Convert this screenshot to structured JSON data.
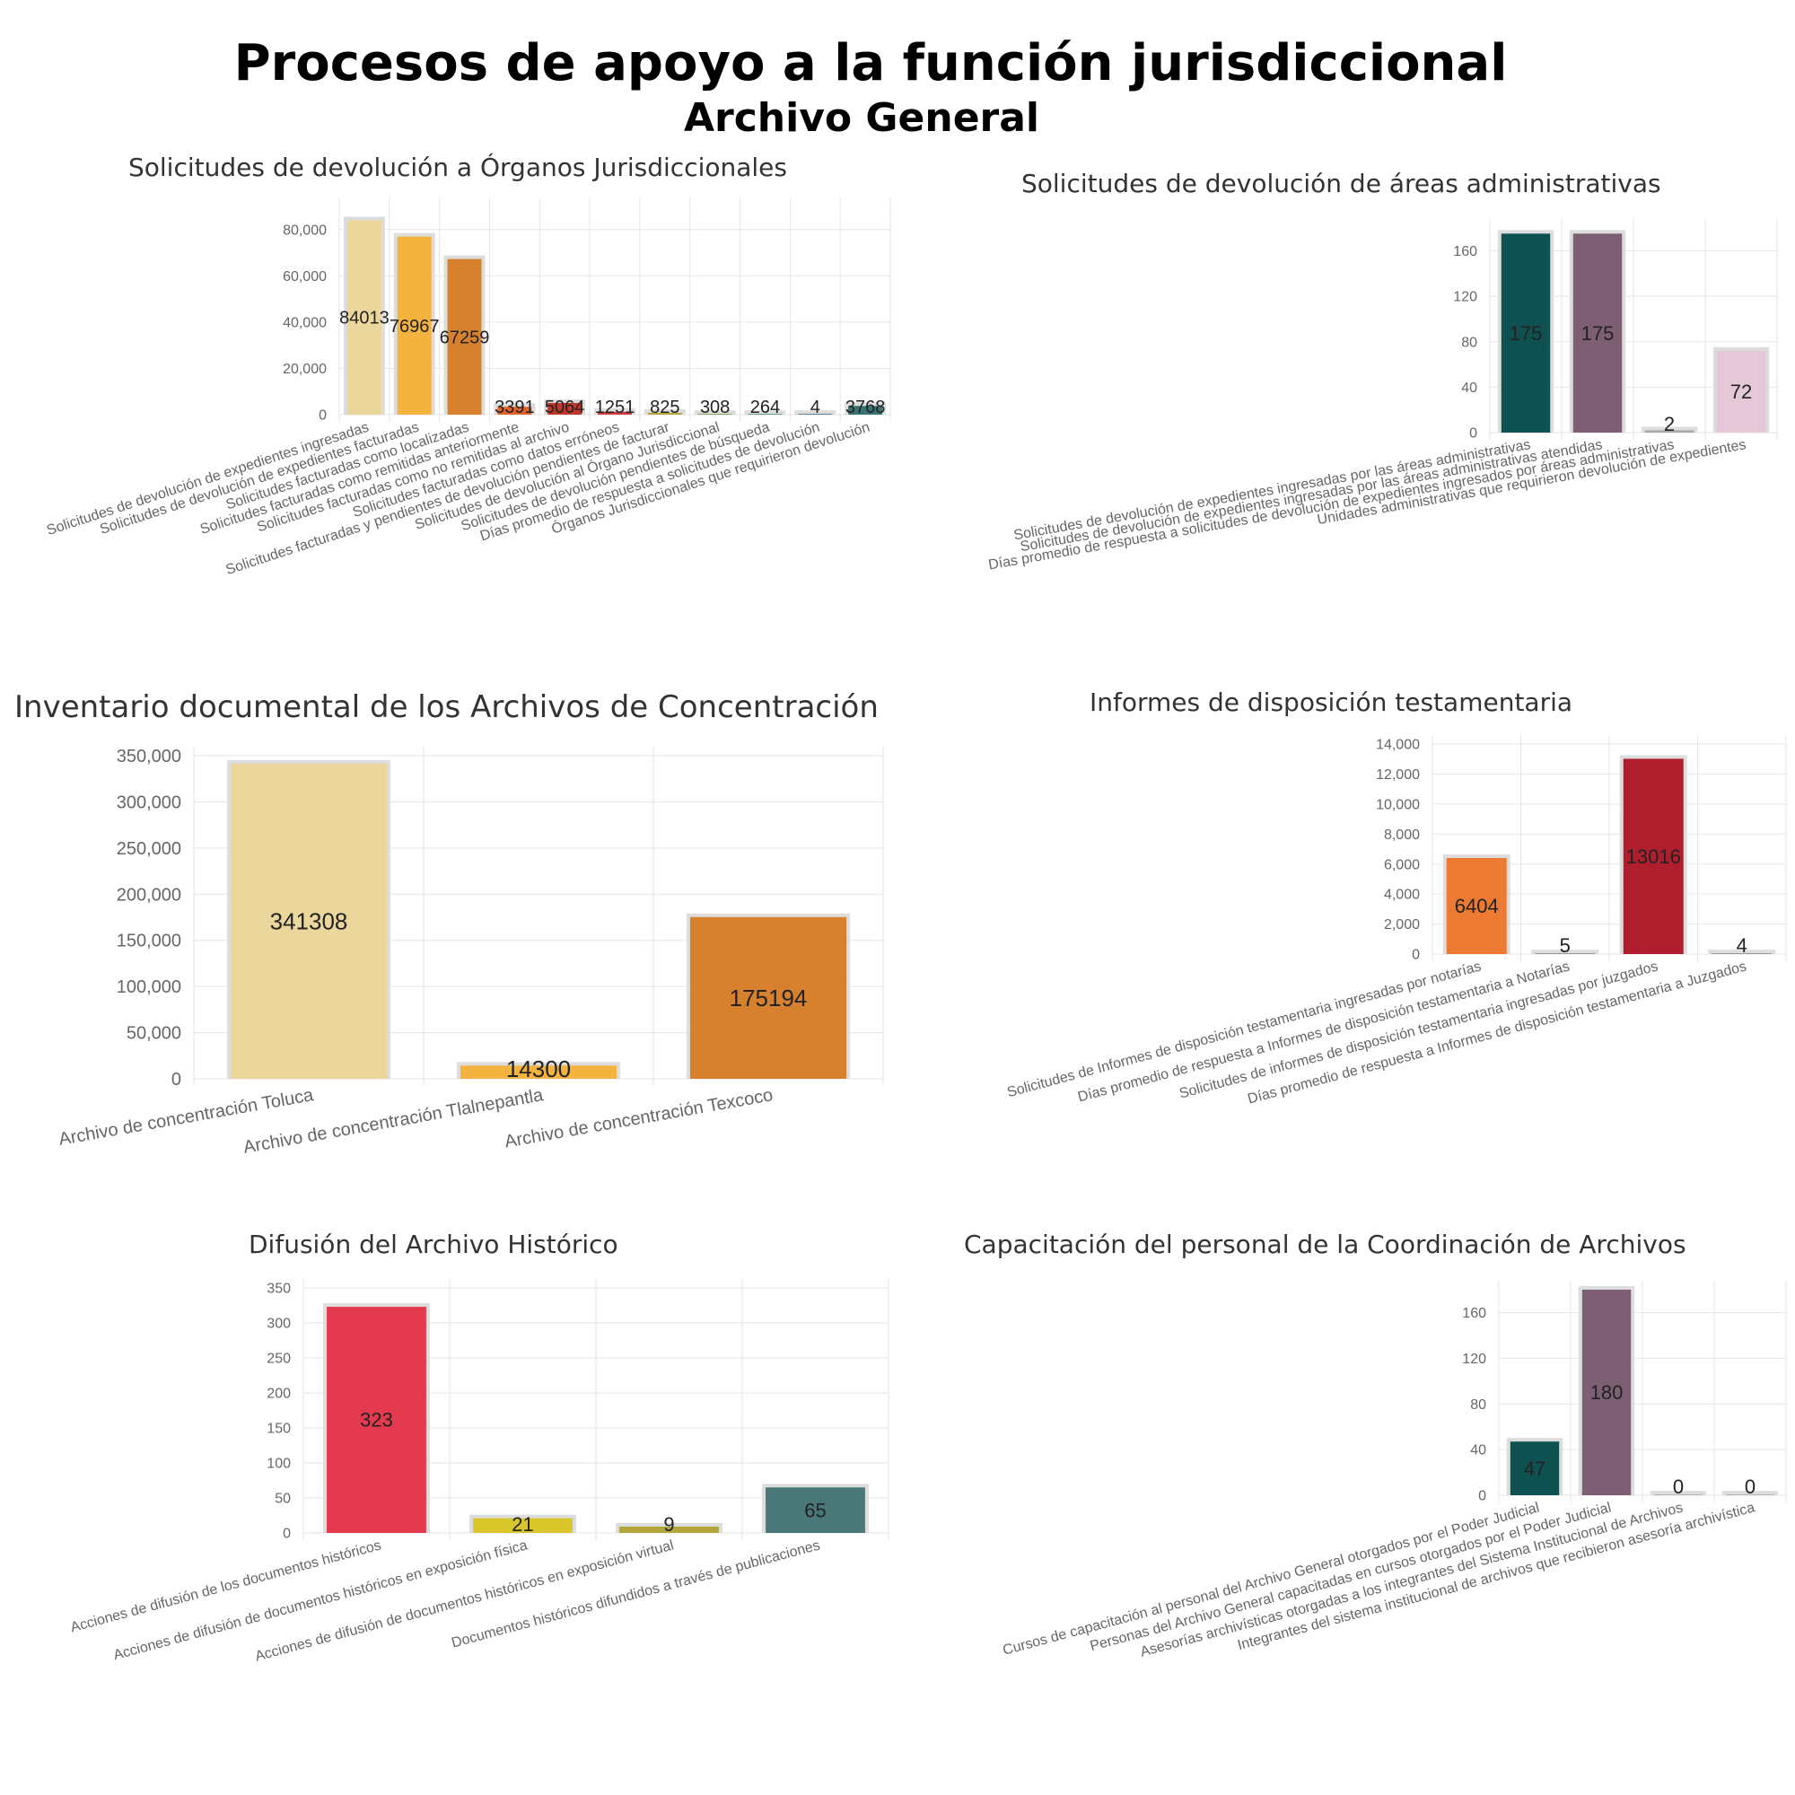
{
  "header": {
    "title": "Procesos de apoyo a la función jurisdiccional",
    "subtitle": "Archivo General"
  },
  "colors": {
    "grid": "#e6e6e6",
    "axis_text": "#666666",
    "value_text": "#222222",
    "bar_border": "#dddddd"
  },
  "chart_data": [
    {
      "id": "organos",
      "type": "bar",
      "title": "Solicitudes de devolución a Órganos Jurisdiccionales",
      "categories": [
        "Solicitudes de devolución de expedientes ingresadas",
        "Solicitudes de devolución de expedientes facturadas",
        "Solicitudes facturadas como localizadas",
        "Solicitudes facturadas como remitidas anteriormente",
        "Solicitudes facturadas como no remitidas al archivo",
        "Solicitudes facturadas como datos erróneos",
        "Solicitudes facturadas y pendientes de devolución pendientes de facturar",
        "Solicitudes de devolución al Órgano Jurisdiccional",
        "Solicitudes de devolución pendientes de búsqueda",
        "Días promedio de respuesta a solicitudes de devolución",
        "Órganos Jurisdiccionales que requirieron devolución"
      ],
      "values": [
        84013,
        76967,
        67259,
        3391,
        5064,
        1251,
        825,
        308,
        264,
        4,
        3768
      ],
      "colors": [
        "#ebd79b",
        "#f4b23e",
        "#d7812f",
        "#e0642a",
        "#c0382b",
        "#cf3b3f",
        "#b7a537",
        "#6f9a4c",
        "#4f8b7e",
        "#3f6f8a",
        "#3a7272"
      ],
      "ylim": [
        0,
        90000
      ],
      "yticks": [
        0,
        20000,
        40000,
        60000,
        80000
      ],
      "grid": true,
      "legend": "none"
    },
    {
      "id": "areas",
      "type": "bar",
      "title": "Solicitudes de devolución de áreas administrativas",
      "categories": [
        "Solicitudes de devolución de expedientes ingresadas por las áreas administrativas",
        "Solicitudes de devolución de expedientes ingresadas por las áreas administrativas atendidas",
        "Días promedio de respuesta a solicitudes de devolución de expedientes ingresados por áreas administrativas",
        "Unidades administrativas que requirieron devolución de expedientes"
      ],
      "values": [
        175,
        175,
        2,
        72
      ],
      "colors": [
        "#0e5150",
        "#7c5f72",
        "#a8a8a8",
        "#e5c8d7"
      ],
      "ylim": [
        0,
        180
      ],
      "yticks": [
        0,
        40,
        80,
        120,
        160
      ],
      "grid": true,
      "legend": "none"
    },
    {
      "id": "inventario",
      "type": "bar",
      "title": "Inventario documental de los Archivos de Concentración",
      "categories": [
        "Archivo de concentración Toluca",
        "Archivo de concentración Tlalnepantla",
        "Archivo de concentración Texcoco"
      ],
      "values": [
        341308,
        14300,
        175194
      ],
      "colors": [
        "#ebd79b",
        "#f4b23e",
        "#d7812f"
      ],
      "ylim": [
        0,
        350000
      ],
      "yticks": [
        0,
        50000,
        100000,
        150000,
        200000,
        250000,
        300000,
        350000
      ],
      "grid": true,
      "legend": "none"
    },
    {
      "id": "testamentaria",
      "type": "bar",
      "title": "Informes de disposición testamentaria",
      "categories": [
        "Solicitudes de Informes de disposición testamentaria ingresadas por notarías",
        "Días promedio de respuesta a Informes de disposición testamentaria a Notarías",
        "Solicitudes de informes de disposición testamentaria ingresadas por juzgados",
        "Días promedio de respuesta a Informes de disposición testamentaria a Juzgados"
      ],
      "values": [
        6404,
        5,
        13016,
        4
      ],
      "colors": [
        "#ec7a32",
        "#8a8a8a",
        "#b01e2e",
        "#8a8a8a"
      ],
      "ylim": [
        0,
        14000
      ],
      "yticks": [
        0,
        2000,
        4000,
        6000,
        8000,
        10000,
        12000,
        14000
      ],
      "grid": true,
      "legend": "none"
    },
    {
      "id": "difusion",
      "type": "bar",
      "title": "Difusión del Archivo Histórico",
      "categories": [
        "Acciones de difusión de los documentos históricos",
        "Acciones de difusión de documentos históricos en exposición física",
        "Acciones de difusión de documentos históricos en exposición virtual",
        "Documentos históricos difundidos a través de publicaciones"
      ],
      "values": [
        323,
        21,
        9,
        65
      ],
      "colors": [
        "#e33a50",
        "#d9c62a",
        "#b3a53d",
        "#4a7878"
      ],
      "ylim": [
        0,
        350
      ],
      "yticks": [
        0,
        50,
        100,
        150,
        200,
        250,
        300,
        350
      ],
      "grid": true,
      "legend": "none"
    },
    {
      "id": "capacitacion",
      "type": "bar",
      "title": "Capacitación del personal de la Coordinación de Archivos",
      "categories": [
        "Cursos de capacitación al personal del Archivo General otorgados por el Poder Judicial",
        "Personas del Archivo General capacitadas en cursos otorgados por el Poder Judicial",
        "Asesorías archivísticas otorgadas a los integrantes del Sistema Institucional de Archivos",
        "Integrantes del sistema institucional de archivos que recibieron asesoría archivística"
      ],
      "values": [
        47,
        180,
        0,
        0
      ],
      "colors": [
        "#0e5150",
        "#7c5f72",
        "#a8a8a8",
        "#a8a8a8"
      ],
      "ylim": [
        0,
        180
      ],
      "yticks": [
        0,
        40,
        80,
        120,
        160
      ],
      "grid": true,
      "legend": "none"
    }
  ]
}
